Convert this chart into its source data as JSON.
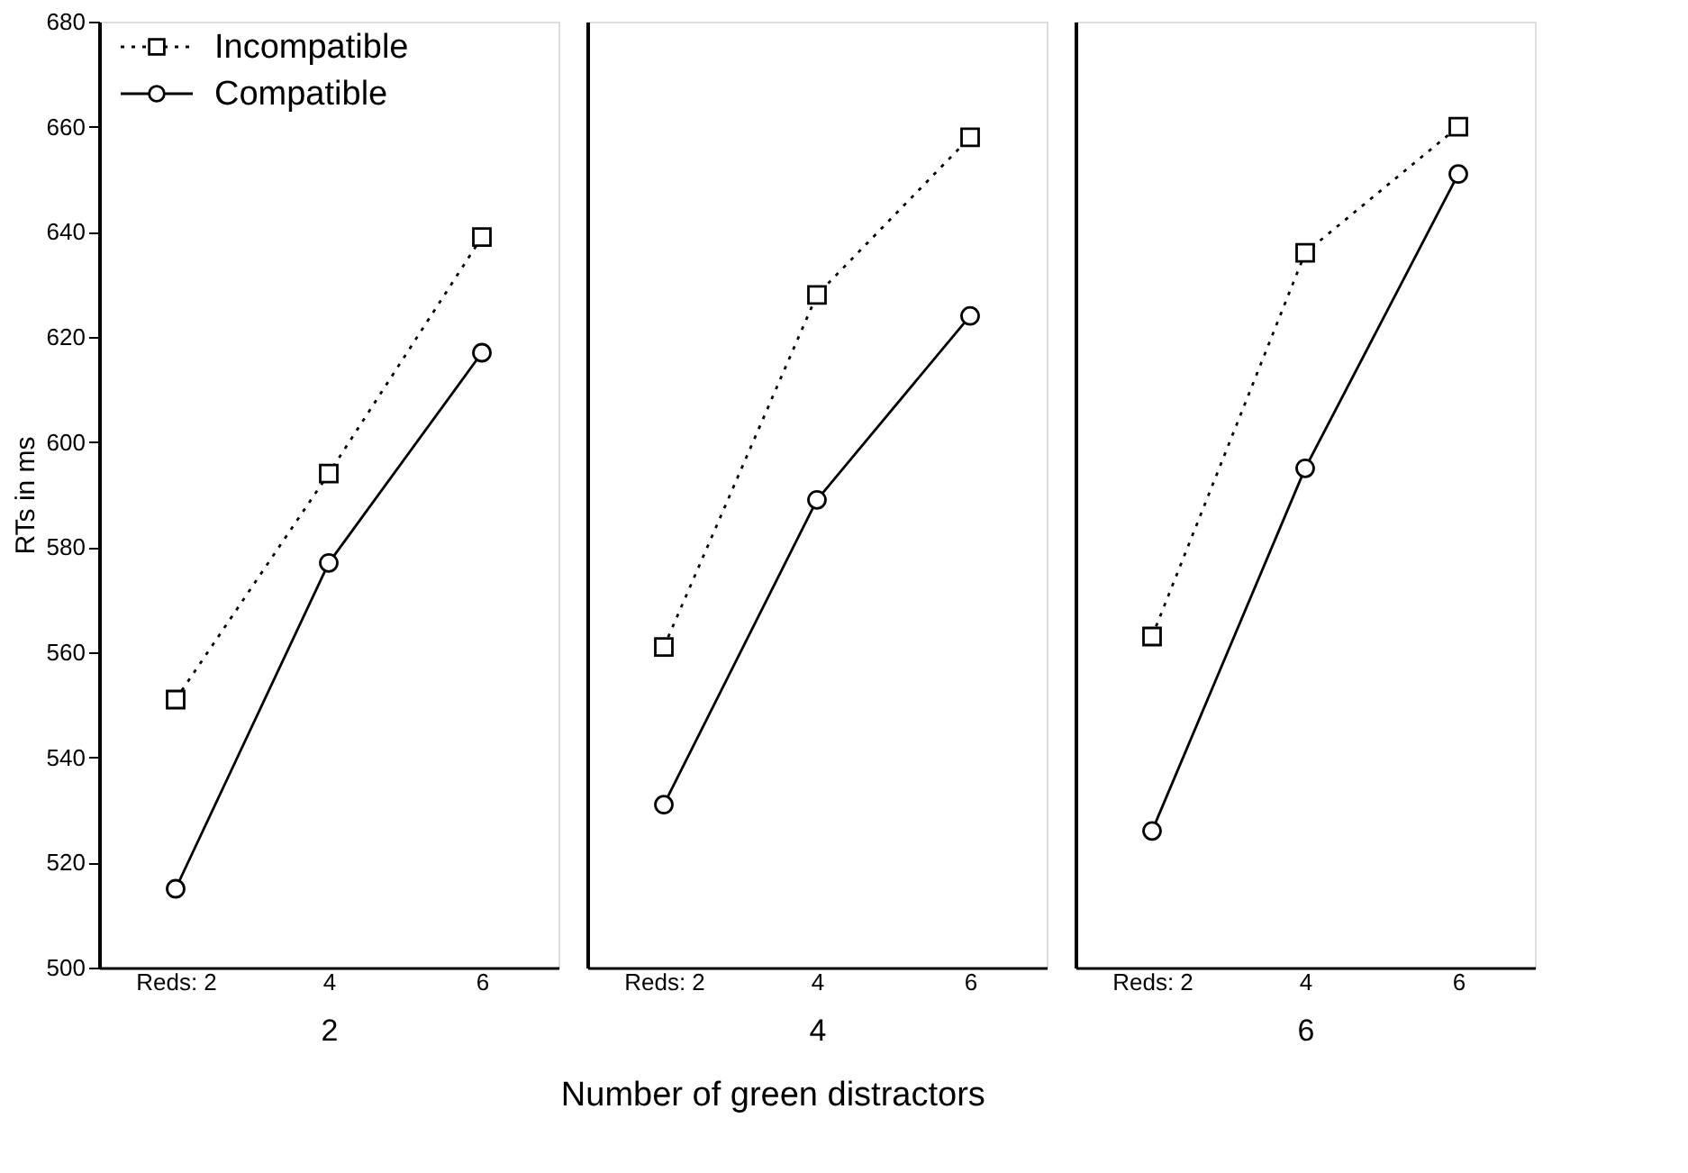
{
  "chart_data": [
    {
      "type": "line",
      "categories": [
        "Reds: 2",
        "4",
        "6"
      ],
      "xlabel": "2",
      "ylabel": "RTs in ms",
      "ylim": [
        500,
        680
      ],
      "yticks": [
        500,
        520,
        540,
        560,
        580,
        600,
        620,
        640,
        660,
        680
      ],
      "grid": false,
      "legend": "top left",
      "series": [
        {
          "name": "Incompatible",
          "color": "#000000",
          "marker": "square",
          "line_style": "dotted",
          "values": [
            551,
            594,
            639
          ]
        },
        {
          "name": "Compatible",
          "color": "#000000",
          "marker": "circle",
          "line_style": "solid",
          "values": [
            515,
            577,
            617
          ]
        }
      ]
    },
    {
      "type": "line",
      "categories": [
        "Reds: 2",
        "4",
        "6"
      ],
      "xlabel": "4",
      "ylim": [
        500,
        680
      ],
      "yticks": [
        500,
        520,
        540,
        560,
        580,
        600,
        620,
        640,
        660,
        680
      ],
      "grid": false,
      "legend": false,
      "tick_labels": "x",
      "annotations": [
        "Number of green distractors"
      ],
      "series": [
        {
          "color": "#000000",
          "marker": "square",
          "line_style": "dotted",
          "values": [
            561,
            628,
            658
          ]
        },
        {
          "color": "#000000",
          "marker": "circle",
          "line_style": "solid",
          "values": [
            531,
            589,
            624
          ]
        }
      ]
    },
    {
      "type": "line",
      "categories": [
        "Reds: 2",
        "4",
        "6"
      ],
      "xlabel": "6",
      "ylim": [
        500,
        680
      ],
      "yticks": [
        500,
        520,
        540,
        560,
        580,
        600,
        620,
        640,
        660,
        680
      ],
      "grid": false,
      "legend": false,
      "tick_labels": "x",
      "series": [
        {
          "color": "#000000",
          "marker": "square",
          "line_style": "dotted",
          "values": [
            563,
            636,
            660
          ]
        },
        {
          "color": "#000000",
          "marker": "circle",
          "line_style": "solid",
          "values": [
            526,
            595,
            651
          ]
        }
      ]
    }
  ]
}
